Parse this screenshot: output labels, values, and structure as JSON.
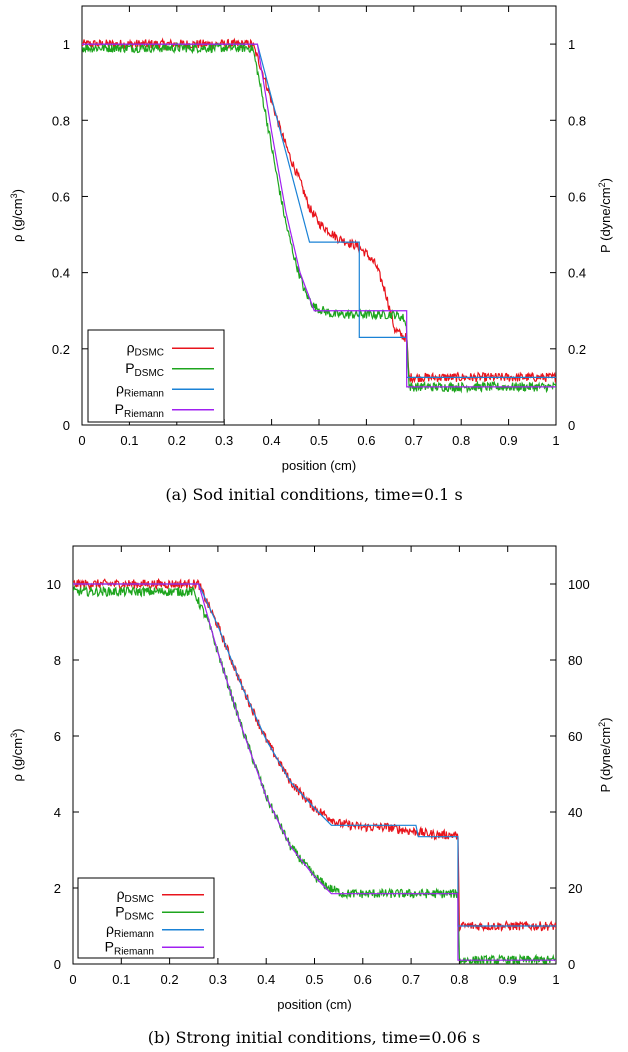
{
  "chart_data": [
    {
      "type": "line",
      "caption": "(a) Sod initial conditions, time=0.1 s",
      "xlabel": "position (cm)",
      "ylabel_main": "ρ",
      "ylabel_units": "(g/cm",
      "ylabel_sup": "3",
      "ylabel_close": ")",
      "y2label_main": "P",
      "y2label_units": "(dyne/cm",
      "y2label_sup": "2",
      "y2label_close": ")",
      "xlim": [
        0,
        1
      ],
      "ylim": [
        0,
        1.1
      ],
      "y2lim": [
        0,
        1.1
      ],
      "x_ticks": [
        "0",
        "0.1",
        "0.2",
        "0.3",
        "0.4",
        "0.5",
        "0.6",
        "0.7",
        "0.8",
        "0.9",
        "1"
      ],
      "y_ticks": [
        "0",
        "0.2",
        "0.4",
        "0.6",
        "0.8",
        "1"
      ],
      "y2_ticks": [
        "0",
        "0.2",
        "0.4",
        "0.6",
        "0.8",
        "1"
      ],
      "grid": false,
      "legend_position": "bottom-left",
      "series": [
        {
          "name_main": "ρ",
          "name_sub": "DSMC",
          "color": "#e8141c",
          "noisy": true,
          "axis": "left",
          "x": [
            0,
            0.36,
            0.38,
            0.4,
            0.42,
            0.44,
            0.46,
            0.48,
            0.5,
            0.52,
            0.54,
            0.56,
            0.58,
            0.6,
            0.62,
            0.64,
            0.66,
            0.68,
            0.685,
            0.69,
            0.72,
            1.0
          ],
          "y": [
            1.0,
            1.0,
            0.93,
            0.85,
            0.77,
            0.7,
            0.64,
            0.57,
            0.53,
            0.51,
            0.49,
            0.48,
            0.47,
            0.45,
            0.42,
            0.35,
            0.25,
            0.23,
            0.23,
            0.125,
            0.125,
            0.125
          ]
        },
        {
          "name_main": "P",
          "name_sub": "DSMC",
          "color": "#1ea51e",
          "noisy": true,
          "axis": "right",
          "x": [
            0,
            0.36,
            0.37,
            0.39,
            0.41,
            0.43,
            0.45,
            0.47,
            0.49,
            0.51,
            0.53,
            0.6,
            0.66,
            0.68,
            0.685,
            0.69,
            0.72,
            1.0
          ],
          "y": [
            0.99,
            0.99,
            0.93,
            0.8,
            0.66,
            0.53,
            0.43,
            0.35,
            0.31,
            0.3,
            0.29,
            0.29,
            0.29,
            0.28,
            0.25,
            0.1,
            0.1,
            0.1
          ]
        },
        {
          "name_main": "ρ",
          "name_sub": "Riemann",
          "color": "#1a82d6",
          "noisy": false,
          "axis": "left",
          "x": [
            0,
            0.37,
            0.48,
            0.485,
            0.585,
            0.585,
            0.685,
            0.685,
            1.0
          ],
          "y": [
            1.0,
            1.0,
            0.48,
            0.48,
            0.48,
            0.23,
            0.23,
            0.125,
            0.125
          ]
        },
        {
          "name_main": "P",
          "name_sub": "Riemann",
          "color": "#a020f0",
          "noisy": false,
          "axis": "right",
          "x": [
            0,
            0.37,
            0.4,
            0.43,
            0.46,
            0.49,
            0.685,
            0.685,
            1.0
          ],
          "y": [
            1.0,
            1.0,
            0.77,
            0.56,
            0.4,
            0.3,
            0.3,
            0.1,
            0.1
          ]
        }
      ]
    },
    {
      "type": "line",
      "caption": "(b) Strong initial conditions, time=0.06 s",
      "xlabel": "position (cm)",
      "ylabel_main": "ρ",
      "ylabel_units": "(g/cm",
      "ylabel_sup": "3",
      "ylabel_close": ")",
      "y2label_main": "P",
      "y2label_units": "(dyne/cm",
      "y2label_sup": "2",
      "y2label_close": ")",
      "xlim": [
        0,
        1
      ],
      "ylim": [
        0,
        11
      ],
      "y2lim": [
        0,
        110
      ],
      "x_ticks": [
        "0",
        "0.1",
        "0.2",
        "0.3",
        "0.4",
        "0.5",
        "0.6",
        "0.7",
        "0.8",
        "0.9",
        "1"
      ],
      "y_ticks": [
        "0",
        "2",
        "4",
        "6",
        "8",
        "10"
      ],
      "y2_ticks": [
        "0",
        "20",
        "40",
        "60",
        "80",
        "100"
      ],
      "grid": false,
      "legend_position": "bottom-left",
      "series": [
        {
          "name_main": "ρ",
          "name_sub": "DSMC",
          "color": "#e8141c",
          "noisy": true,
          "axis": "left",
          "x": [
            0,
            0.26,
            0.3,
            0.35,
            0.4,
            0.45,
            0.5,
            0.55,
            0.6,
            0.65,
            0.7,
            0.75,
            0.79,
            0.797,
            0.8,
            0.85,
            1.0
          ],
          "y": [
            10.0,
            10.0,
            8.9,
            7.3,
            5.9,
            4.8,
            4.1,
            3.7,
            3.6,
            3.6,
            3.5,
            3.4,
            3.4,
            3.35,
            1.0,
            1.0,
            1.0
          ]
        },
        {
          "name_main": "P",
          "name_sub": "DSMC",
          "color": "#1ea51e",
          "noisy": true,
          "axis": "right",
          "x": [
            0,
            0.25,
            0.28,
            0.3,
            0.35,
            0.4,
            0.45,
            0.5,
            0.53,
            0.56,
            0.6,
            0.7,
            0.79,
            0.797,
            0.8,
            1.0
          ],
          "y": [
            98,
            98,
            90,
            82,
            62,
            44,
            31,
            23,
            20,
            18.5,
            18.5,
            18.5,
            18.5,
            18.5,
            1,
            1
          ]
        },
        {
          "name_main": "ρ",
          "name_sub": "Riemann",
          "color": "#1a82d6",
          "noisy": false,
          "axis": "left",
          "x": [
            0,
            0.26,
            0.3,
            0.35,
            0.4,
            0.45,
            0.5,
            0.535,
            0.71,
            0.715,
            0.797,
            0.797,
            1.0
          ],
          "y": [
            10.0,
            10.0,
            8.9,
            7.3,
            5.9,
            4.8,
            4.1,
            3.65,
            3.65,
            3.35,
            3.35,
            1.0,
            1.0
          ]
        },
        {
          "name_main": "P",
          "name_sub": "Riemann",
          "color": "#a020f0",
          "noisy": false,
          "axis": "right",
          "x": [
            0,
            0.26,
            0.3,
            0.35,
            0.4,
            0.45,
            0.5,
            0.535,
            0.797,
            0.797,
            1.0
          ],
          "y": [
            100,
            100,
            82,
            62,
            44,
            31,
            23,
            18.5,
            18.5,
            1,
            1
          ]
        }
      ]
    }
  ]
}
